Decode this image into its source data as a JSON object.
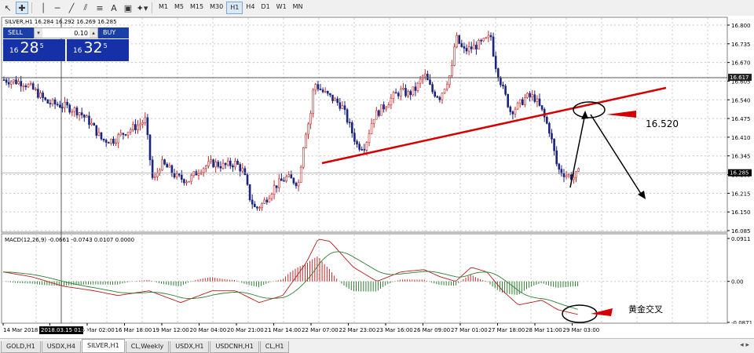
{
  "toolbar": {
    "timeframes": [
      "M1",
      "M5",
      "M15",
      "M30",
      "H1",
      "H4",
      "D1",
      "W1",
      "MN"
    ],
    "active_timeframe": "H1",
    "tools": [
      "cursor-icon",
      "crosshair-icon",
      "vertical-line-icon",
      "horizontal-line-icon",
      "trendline-icon",
      "channel-icon",
      "fibo-icon",
      "text-icon",
      "label-icon",
      "shapes-icon"
    ]
  },
  "chart": {
    "header": "SILVER,H1  16.284 16.292 16.269 16.285",
    "price_scale": [
      "16.800",
      "16.735",
      "16.670",
      "16.605",
      "16.540",
      "16.475",
      "16.410",
      "16.345",
      "16.280",
      "16.215",
      "16.150",
      "16.085"
    ],
    "current_price": "16.285",
    "hline_price": "16.617",
    "annotation_price": "16.520",
    "time_labels": [
      "14 Mar 2018",
      "15 Mar 10:00",
      "16 Mar 02:00",
      "16 Mar 18:00",
      "19 Mar 12:00",
      "20 Mar 04:00",
      "20 Mar 21:00",
      "21 Mar 14:00",
      "22 Mar 07:00",
      "22 Mar 23:00",
      "23 Mar 16:00",
      "26 Mar 09:00",
      "27 Mar 01:00",
      "27 Mar 18:00",
      "28 Mar 11:00",
      "29 Mar 03:00"
    ],
    "crosshair_time": "2018.03.15 01:00"
  },
  "macd": {
    "header": "MACD(12,26,9) -0.0661 -0.0743 0.0107 0.0000",
    "scale": [
      "0.0911",
      "0.00",
      "-0.0871"
    ],
    "annotation": "黄金交叉"
  },
  "trade_panel": {
    "sell_label": "SELL",
    "buy_label": "BUY",
    "lot": "0.10",
    "sell_small": "16",
    "sell_big": "28",
    "sell_sup": "5",
    "buy_small": "16",
    "buy_big": "32",
    "buy_sup": "5"
  },
  "tabs": [
    "GOLD,H1",
    "USDX,H4",
    "SILVER,H1",
    "CL,Weekly",
    "USDX,H1",
    "USDCNH,H1",
    "CL,H1"
  ],
  "active_tab": "SILVER,H1",
  "colors": {
    "bull": "#c62828",
    "bear": "#1a237e",
    "trendline": "#d50000",
    "macd_pos": "#c62828",
    "macd_neg": "#2e7d32",
    "panel_blue": "#1631a8"
  }
}
